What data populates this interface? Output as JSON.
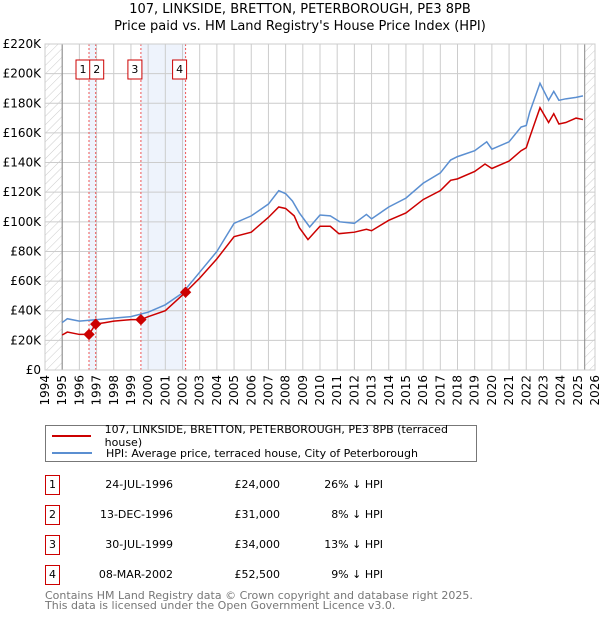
{
  "chart_data": {
    "type": "line",
    "title": "107, LINKSIDE, BRETTON, PETERBOROUGH, PE3 8PB",
    "subtitle": "Price paid vs. HM Land Registry's House Price Index (HPI)",
    "xlim": [
      1994,
      2026
    ],
    "ylim": [
      0,
      220000
    ],
    "y_ticks": [
      "£0",
      "£20K",
      "£40K",
      "£60K",
      "£80K",
      "£100K",
      "£120K",
      "£140K",
      "£160K",
      "£180K",
      "£200K",
      "£220K"
    ],
    "x_ticks": [
      "1994",
      "1995",
      "1996",
      "1997",
      "1998",
      "1999",
      "2000",
      "2001",
      "2002",
      "2003",
      "2004",
      "2005",
      "2006",
      "2007",
      "2008",
      "2009",
      "2010",
      "2011",
      "2012",
      "2013",
      "2014",
      "2015",
      "2016",
      "2017",
      "2018",
      "2019",
      "2020",
      "2021",
      "2022",
      "2023",
      "2024",
      "2025",
      "2026"
    ],
    "grid": true,
    "series": [
      {
        "name": "107, LINKSIDE, BRETTON, PETERBOROUGH, PE3 8PB (terraced house)",
        "color": "#cc0000",
        "x": [
          1995,
          1995.3,
          1996,
          1996.56,
          1996.95,
          1997.5,
          1998,
          1999,
          1999.58,
          2000,
          2001,
          2002.18,
          2003,
          2004,
          2005,
          2006,
          2007,
          2007.6,
          2008,
          2008.5,
          2008.8,
          2009.3,
          2010,
          2010.6,
          2011.1,
          2012,
          2012.7,
          2013,
          2014,
          2015,
          2016,
          2017,
          2017.6,
          2018,
          2019,
          2019.6,
          2020,
          2021,
          2021.7,
          2022,
          2022.2,
          2022.8,
          2023.3,
          2023.6,
          2023.9,
          2024.3,
          2024.9,
          2025.3
        ],
        "y": [
          23600,
          25600,
          24000,
          24000,
          31000,
          32000,
          33000,
          34000,
          34000,
          36000,
          40000,
          52500,
          62000,
          75000,
          90000,
          93000,
          103000,
          110000,
          109000,
          104000,
          96000,
          88000,
          97000,
          97000,
          92000,
          93000,
          95000,
          94000,
          101000,
          106000,
          115000,
          121000,
          128000,
          129000,
          134000,
          139000,
          136000,
          141000,
          148000,
          150000,
          157000,
          177000,
          167000,
          173000,
          166000,
          167000,
          170000,
          169000
        ]
      },
      {
        "name": "HPI: Average price, terraced house, City of Peterborough",
        "color": "#5b8fd1",
        "x": [
          1995,
          1995.3,
          1996,
          1997,
          1998,
          1999,
          2000,
          2001,
          2002,
          2003,
          2004,
          2005,
          2006,
          2007,
          2007.6,
          2008,
          2008.4,
          2008.8,
          2009.4,
          2010,
          2010.6,
          2011.15,
          2012,
          2012.7,
          2013,
          2014,
          2015,
          2016,
          2017,
          2017.6,
          2018,
          2019,
          2019.7,
          2020,
          2021,
          2021.7,
          2022,
          2022.2,
          2022.8,
          2023.3,
          2023.6,
          2023.9,
          2024.3,
          2024.9,
          2025.3
        ],
        "y": [
          32000,
          34600,
          33000,
          34000,
          35000,
          36000,
          39000,
          44000,
          52000,
          66000,
          80000,
          99000,
          104000,
          112000,
          121000,
          119000,
          114000,
          106000,
          96500,
          104600,
          104000,
          100000,
          99000,
          105000,
          102000,
          110000,
          116000,
          126000,
          133000,
          141700,
          144000,
          148000,
          154000,
          149000,
          154000,
          164000,
          165000,
          174000,
          193500,
          182000,
          188000,
          182000,
          183000,
          184000,
          185000
        ]
      }
    ],
    "sales": [
      {
        "n": "1",
        "date": "24-JUL-1996",
        "x": 1996.56,
        "price": "£24,000",
        "value": 24000,
        "hpi": "26% ↓ HPI"
      },
      {
        "n": "2",
        "date": "13-DEC-1996",
        "x": 1996.95,
        "price": "£31,000",
        "value": 31000,
        "hpi": "8% ↓ HPI"
      },
      {
        "n": "3",
        "date": "30-JUL-1999",
        "x": 1999.58,
        "price": "£34,000",
        "value": 34000,
        "hpi": "13% ↓ HPI"
      },
      {
        "n": "4",
        "date": "08-MAR-2002",
        "x": 2002.18,
        "price": "£52,500",
        "value": 52500,
        "hpi": "9% ↓ HPI"
      }
    ],
    "legend": "bottom"
  },
  "footer": {
    "line1": "Contains HM Land Registry data © Crown copyright and database right 2025.",
    "line2": "This data is licensed under the Open Government Licence v3.0."
  }
}
